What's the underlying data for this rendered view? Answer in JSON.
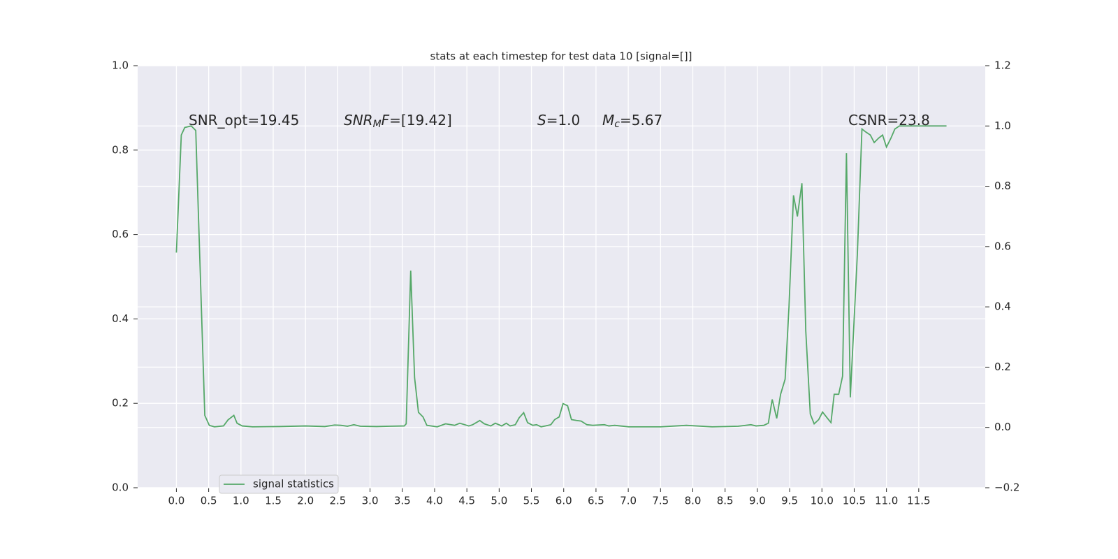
{
  "chart_data": {
    "type": "line",
    "title": "stats at each timestep for test data 10 [signal=[]]",
    "x": [
      0,
      0.076,
      0.13,
      0.23,
      0.3,
      0.44,
      0.51,
      0.59,
      0.73,
      0.8,
      0.89,
      0.94,
      1.02,
      1.18,
      1.6,
      2.0,
      2.3,
      2.45,
      2.55,
      2.65,
      2.75,
      2.85,
      3.1,
      3.3,
      3.53,
      3.56,
      3.63,
      3.69,
      3.75,
      3.82,
      3.88,
      4.04,
      4.17,
      4.31,
      4.39,
      4.53,
      4.59,
      4.7,
      4.77,
      4.87,
      4.94,
      5.04,
      5.11,
      5.17,
      5.25,
      5.31,
      5.38,
      5.44,
      5.52,
      5.58,
      5.65,
      5.72,
      5.8,
      5.86,
      5.93,
      5.99,
      6.06,
      6.12,
      6.2,
      6.27,
      6.36,
      6.45,
      6.63,
      6.7,
      6.79,
      7.01,
      7.5,
      7.9,
      8.3,
      8.7,
      8.9,
      8.98,
      9.1,
      9.17,
      9.23,
      9.3,
      9.36,
      9.43,
      9.49,
      9.56,
      9.62,
      9.69,
      9.75,
      9.82,
      9.88,
      9.95,
      10.01,
      10.08,
      10.14,
      10.19,
      10.26,
      10.32,
      10.38,
      10.44,
      10.55,
      10.62,
      10.68,
      10.75,
      10.81,
      10.88,
      10.94,
      11.0,
      11.07,
      11.13,
      11.2,
      11.93
    ],
    "series": [
      {
        "name": "signal statistics",
        "color": "#55a868",
        "axis": "y2",
        "values": [
          0.58,
          0.97,
          0.995,
          1.0,
          0.985,
          0.04,
          0.007,
          0.002,
          0.005,
          0.025,
          0.04,
          0.014,
          0.005,
          0.002,
          0.003,
          0.005,
          0.003,
          0.008,
          0.007,
          0.004,
          0.009,
          0.004,
          0.003,
          0.004,
          0.005,
          0.012,
          0.52,
          0.165,
          0.05,
          0.035,
          0.007,
          0.002,
          0.012,
          0.007,
          0.014,
          0.005,
          0.009,
          0.023,
          0.012,
          0.005,
          0.014,
          0.005,
          0.014,
          0.005,
          0.009,
          0.032,
          0.049,
          0.016,
          0.007,
          0.009,
          0.002,
          0.005,
          0.009,
          0.026,
          0.035,
          0.079,
          0.072,
          0.026,
          0.023,
          0.021,
          0.009,
          0.007,
          0.009,
          0.005,
          0.007,
          0.002,
          0.002,
          0.007,
          0.002,
          0.004,
          0.009,
          0.005,
          0.007,
          0.014,
          0.093,
          0.03,
          0.11,
          0.16,
          0.4,
          0.77,
          0.7,
          0.81,
          0.32,
          0.044,
          0.012,
          0.026,
          0.051,
          0.032,
          0.016,
          0.11,
          0.11,
          0.17,
          0.91,
          0.1,
          0.58,
          0.99,
          0.98,
          0.97,
          0.945,
          0.96,
          0.97,
          0.93,
          0.96,
          0.99,
          1.0,
          1.0
        ]
      }
    ],
    "xlim": [
      -0.6,
      12.53
    ],
    "xticks": [
      {
        "value": 0,
        "label": "0.0"
      },
      0.5,
      {
        "value": 1,
        "label": "1.0"
      },
      1.5,
      {
        "value": 2,
        "label": "2.0"
      },
      2.5,
      {
        "value": 3,
        "label": "3.0"
      },
      3.5,
      {
        "value": 4,
        "label": "4.0"
      },
      4.5,
      {
        "value": 5,
        "label": "5.0"
      },
      5.5,
      {
        "value": 6,
        "label": "6.0"
      },
      6.5,
      {
        "value": 7,
        "label": "7.0"
      },
      7.5,
      {
        "value": 8,
        "label": "8.0"
      },
      8.5,
      {
        "value": 9,
        "label": "9.0"
      },
      9.5,
      {
        "value": 10,
        "label": "10.0"
      },
      10.5,
      {
        "value": 11,
        "label": "11.0"
      },
      11.5
    ],
    "ylim": [
      0,
      1
    ],
    "yticks": [
      {
        "value": 0,
        "label": "0.0"
      },
      0.2,
      0.4,
      0.6,
      0.8,
      {
        "value": 1,
        "label": "1.0"
      }
    ],
    "y2lim": [
      -0.2,
      1.2
    ],
    "y2ticks": [
      {
        "value": -0.2,
        "label": "−0.2"
      },
      {
        "value": 0,
        "label": "0.0"
      },
      0.2,
      0.4,
      0.6,
      0.8,
      {
        "value": 1,
        "label": "1.0"
      },
      1.2
    ],
    "grid": true,
    "legend": "lower left",
    "annotations": [
      [
        {
          "text": "SNR_opt=19.45"
        }
      ],
      [
        {
          "text": "SNR",
          "style": "italic"
        },
        {
          "text": "M",
          "style": "italic-sub"
        },
        {
          "text": "F",
          "style": "italic"
        },
        {
          "text": "=[19.42]"
        }
      ],
      [
        {
          "text": "S",
          "style": "italic"
        },
        {
          "text": "=1.0"
        }
      ],
      [
        {
          "text": "M",
          "style": "italic"
        },
        {
          "text": "c",
          "style": "italic-sub"
        },
        {
          "text": "=5.67"
        }
      ],
      [
        {
          "text": "CSNR=23.8"
        }
      ]
    ]
  }
}
